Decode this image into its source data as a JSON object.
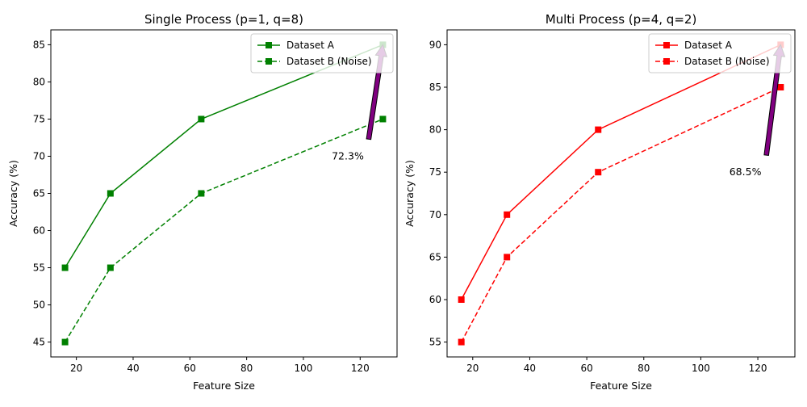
{
  "chart_data": [
    {
      "type": "line",
      "title": "Single Process (p=1, q=8)",
      "xlabel": "Feature Size",
      "ylabel": "Accuracy (%)",
      "xlim": [
        11,
        133
      ],
      "ylim": [
        43,
        87
      ],
      "xticks": [
        20,
        40,
        60,
        80,
        100,
        120
      ],
      "yticks": [
        45,
        50,
        55,
        60,
        65,
        70,
        75,
        80,
        85
      ],
      "grid": false,
      "legend": "top-right",
      "x": [
        16,
        32,
        64,
        128
      ],
      "series": [
        {
          "name": "Dataset A",
          "values": [
            55,
            65,
            75,
            85
          ],
          "color": "#008000",
          "dash": "solid",
          "marker": "square"
        },
        {
          "name": "Dataset B (Noise)",
          "values": [
            45,
            55,
            65,
            75
          ],
          "color": "#008000",
          "dash": "dashed",
          "marker": "square"
        }
      ],
      "annotation": {
        "text": "72.3%",
        "text_x": 110,
        "text_y": 70,
        "arrow_from": [
          123,
          72.3
        ],
        "arrow_to": [
          128,
          85
        ],
        "arrow_color": "#800080"
      }
    },
    {
      "type": "line",
      "title": "Multi Process (p=4, q=2)",
      "xlabel": "Feature Size",
      "ylabel": "Accuracy (%)",
      "xlim": [
        11,
        133
      ],
      "ylim": [
        53.25,
        91.75
      ],
      "xticks": [
        20,
        40,
        60,
        80,
        100,
        120
      ],
      "yticks": [
        55,
        60,
        65,
        70,
        75,
        80,
        85,
        90
      ],
      "grid": false,
      "legend": "top-right",
      "x": [
        16,
        32,
        64,
        128
      ],
      "series": [
        {
          "name": "Dataset A",
          "values": [
            60,
            70,
            80,
            90
          ],
          "color": "#ff0000",
          "dash": "solid",
          "marker": "square"
        },
        {
          "name": "Dataset B (Noise)",
          "values": [
            55,
            65,
            75,
            85
          ],
          "color": "#ff0000",
          "dash": "dashed",
          "marker": "square"
        }
      ],
      "annotation": {
        "text": "68.5%",
        "text_x": 110,
        "text_y": 75,
        "arrow_from": [
          123,
          77
        ],
        "arrow_to": [
          128,
          90
        ],
        "arrow_color": "#800080"
      }
    }
  ]
}
